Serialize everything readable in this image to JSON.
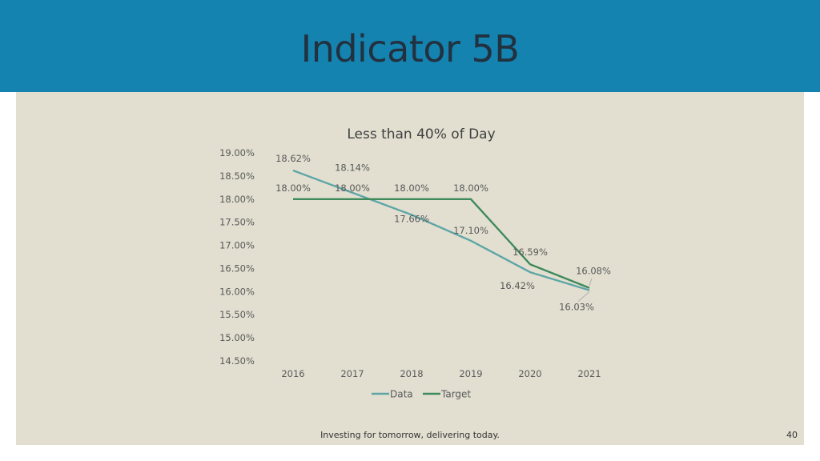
{
  "slide": {
    "title": "Indicator 5B",
    "footer": "Investing for tomorrow, delivering today.",
    "page_number": "40"
  },
  "colors": {
    "header": "#1583b0",
    "panel": "#e2dfd1",
    "data_series": "#5ea6a6",
    "target_series": "#3f8a5a"
  },
  "chart_data": {
    "type": "line",
    "title": "Less than 40% of Day",
    "x": [
      "2016",
      "2017",
      "2018",
      "2019",
      "2020",
      "2021"
    ],
    "y_ticks": [
      "19.00%",
      "18.50%",
      "18.00%",
      "17.50%",
      "17.00%",
      "16.50%",
      "16.00%",
      "15.50%",
      "15.00%",
      "14.50%"
    ],
    "ylim": [
      14.5,
      19.0
    ],
    "grid": false,
    "legend": "bottom",
    "series": [
      {
        "name": "Data",
        "values": [
          18.62,
          18.14,
          17.66,
          17.1,
          16.42,
          16.03
        ],
        "labels": [
          "18.62%",
          "18.14%",
          "17.66%",
          "17.10%",
          "16.42%",
          "16.03%"
        ]
      },
      {
        "name": "Target",
        "values": [
          18.0,
          18.0,
          18.0,
          18.0,
          16.59,
          16.08
        ],
        "labels": [
          "18.00%",
          "18.00%",
          "18.00%",
          "18.00%",
          "16.59%",
          "16.08%"
        ]
      }
    ]
  }
}
